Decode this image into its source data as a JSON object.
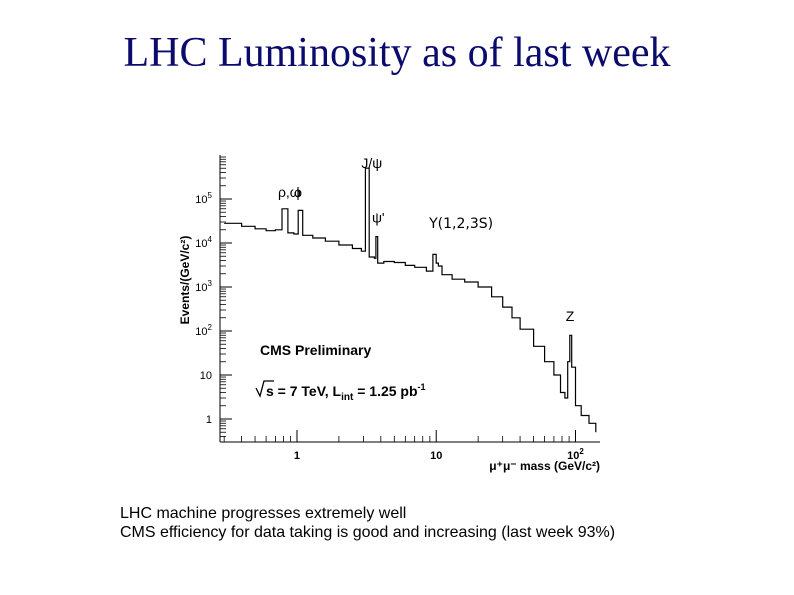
{
  "slide": {
    "title": "LHC Luminosity as of last week",
    "bullets": [
      "LHC machine progresses extremely well",
      "CMS efficiency for data taking is good and increasing (last week 93%)"
    ]
  },
  "chart_data": {
    "type": "line",
    "subtype": "histogram-step",
    "xlabel": "μ⁺μ⁻ mass (GeV/c²)",
    "ylabel": "Events/(GeV/c²)",
    "xscale": "log",
    "yscale": "log",
    "xlim": [
      0.28,
      150
    ],
    "ylim": [
      0.3,
      1000000
    ],
    "x_ticks": [
      {
        "value": 1,
        "label": "1"
      },
      {
        "value": 10,
        "label": "10"
      },
      {
        "value": 100,
        "label": "10",
        "exp": "2"
      }
    ],
    "y_ticks": [
      {
        "value": 1,
        "label": "1",
        "exp": ""
      },
      {
        "value": 10,
        "label": "10",
        "exp": ""
      },
      {
        "value": 100,
        "label": "10",
        "exp": "2"
      },
      {
        "value": 1000,
        "label": "10",
        "exp": "3"
      },
      {
        "value": 10000,
        "label": "10",
        "exp": "4"
      },
      {
        "value": 100000,
        "label": "10",
        "exp": "5"
      }
    ],
    "grid": false,
    "text": {
      "experiment": "CMS Preliminary",
      "energy": "s = 7 TeV,  L",
      "lumi_sub": "int",
      "lumi_value": " = 1.25 pb",
      "lumi_exp": "-1"
    },
    "annotations": [
      {
        "label": "ρ,ω",
        "x": 0.78,
        "y": 110000
      },
      {
        "label": "ϕ",
        "x": 1.02,
        "y": 110000
      },
      {
        "label": "J/ψ",
        "x": 3.1,
        "y": 500000
      },
      {
        "label": "ψ'",
        "x": 3.69,
        "y": 29000
      },
      {
        "label": "Υ(1,2,3S)",
        "x": 9.5,
        "y": 22000
      },
      {
        "label": "Z",
        "x": 91,
        "y": 170
      }
    ],
    "series": [
      {
        "points": [
          [
            0.3,
            28000
          ],
          [
            0.4,
            24000
          ],
          [
            0.5,
            21000
          ],
          [
            0.6,
            19000
          ],
          [
            0.7,
            20000
          ],
          [
            0.78,
            60000
          ],
          [
            0.86,
            17000
          ],
          [
            0.95,
            16000
          ],
          [
            1.02,
            55000
          ],
          [
            1.1,
            15000
          ],
          [
            1.3,
            13000
          ],
          [
            1.6,
            11000
          ],
          [
            2.0,
            9000
          ],
          [
            2.5,
            7500
          ],
          [
            2.9,
            6500
          ],
          [
            3.1,
            500000
          ],
          [
            3.3,
            4800
          ],
          [
            3.6,
            4500
          ],
          [
            3.69,
            14000
          ],
          [
            3.8,
            3500
          ],
          [
            4.2,
            3800
          ],
          [
            5.0,
            3600
          ],
          [
            6.0,
            3100
          ],
          [
            7.0,
            2800
          ],
          [
            8.5,
            2300
          ],
          [
            9.46,
            5500
          ],
          [
            10.0,
            3500
          ],
          [
            10.36,
            3000
          ],
          [
            11.0,
            1900
          ],
          [
            13.0,
            1500
          ],
          [
            16.0,
            1300
          ],
          [
            20.0,
            1000
          ],
          [
            25.0,
            600
          ],
          [
            30.0,
            350
          ],
          [
            35.0,
            200
          ],
          [
            40.0,
            110
          ],
          [
            50.0,
            45
          ],
          [
            60.0,
            20
          ],
          [
            70.0,
            10
          ],
          [
            78.0,
            4
          ],
          [
            84.0,
            3
          ],
          [
            88.0,
            20
          ],
          [
            91.0,
            80
          ],
          [
            94.0,
            15
          ],
          [
            100.0,
            2
          ],
          [
            110.0,
            1.2
          ],
          [
            125.0,
            0.8
          ],
          [
            140.0,
            0.5
          ]
        ]
      }
    ]
  }
}
